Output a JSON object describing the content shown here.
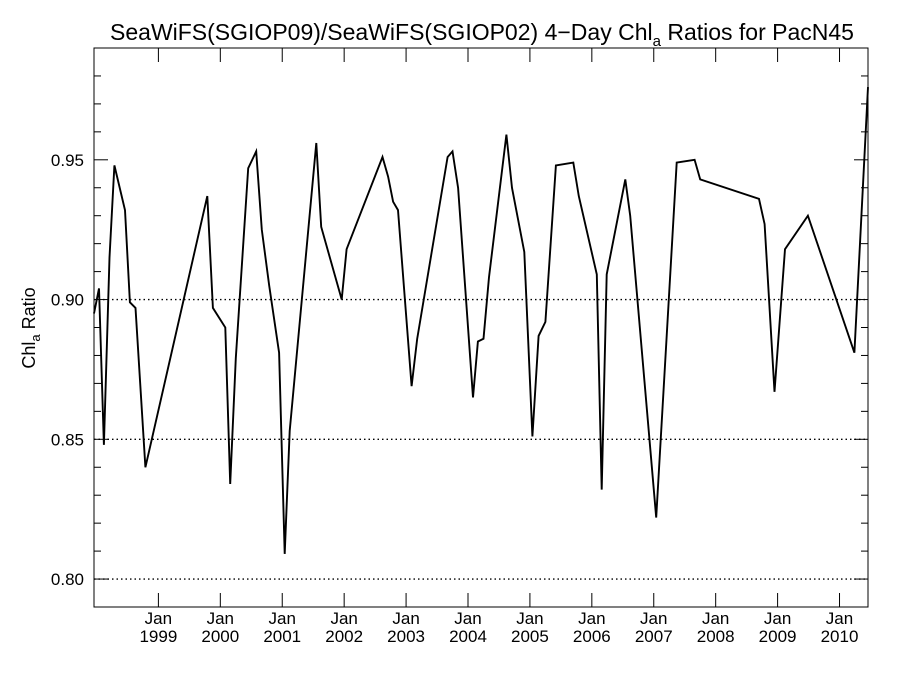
{
  "chart_data": {
    "type": "line",
    "title_main": "SeaWiFS(SGIOP09)/SeaWiFS(SGIOP02) 4−Day Chl",
    "title_sub": "a",
    "title_tail": " Ratios for PacN45",
    "ylabel_main": "Chl",
    "ylabel_sub": "a",
    "ylabel_tail": " Ratio",
    "ylim": [
      0.79,
      0.99
    ],
    "xlim": [
      1997.96,
      2010.46
    ],
    "y_ticks": [
      {
        "value": 0.8,
        "label": "0.80"
      },
      {
        "value": 0.85,
        "label": "0.85"
      },
      {
        "value": 0.9,
        "label": "0.90"
      },
      {
        "value": 0.95,
        "label": "0.95"
      }
    ],
    "y_gridlines": [
      0.8,
      0.85,
      0.9
    ],
    "x_ticks": [
      {
        "value": 1999,
        "month": "Jan",
        "year": "1999"
      },
      {
        "value": 2000,
        "month": "Jan",
        "year": "2000"
      },
      {
        "value": 2001,
        "month": "Jan",
        "year": "2001"
      },
      {
        "value": 2002,
        "month": "Jan",
        "year": "2002"
      },
      {
        "value": 2003,
        "month": "Jan",
        "year": "2003"
      },
      {
        "value": 2004,
        "month": "Jan",
        "year": "2004"
      },
      {
        "value": 2005,
        "month": "Jan",
        "year": "2005"
      },
      {
        "value": 2006,
        "month": "Jan",
        "year": "2006"
      },
      {
        "value": 2007,
        "month": "Jan",
        "year": "2007"
      },
      {
        "value": 2008,
        "month": "Jan",
        "year": "2008"
      },
      {
        "value": 2009,
        "month": "Jan",
        "year": "2009"
      },
      {
        "value": 2010,
        "month": "Jan",
        "year": "2010"
      }
    ],
    "series": [
      {
        "color": "#000000",
        "x": [
          1997.96,
          1998.04,
          1998.12,
          1998.21,
          1998.29,
          1998.46,
          1998.54,
          1998.63,
          1998.79,
          1999.79,
          1999.88,
          2000.08,
          2000.16,
          2000.25,
          2000.45,
          2000.58,
          2000.67,
          2000.79,
          2000.95,
          2001.04,
          2001.12,
          2001.55,
          2001.63,
          2001.96,
          2002.04,
          2002.62,
          2002.71,
          2002.79,
          2002.87,
          2003.09,
          2003.18,
          2003.67,
          2003.75,
          2003.84,
          2004.08,
          2004.16,
          2004.25,
          2004.34,
          2004.62,
          2004.71,
          2004.91,
          2005.04,
          2005.14,
          2005.25,
          2005.42,
          2005.7,
          2005.79,
          2006.08,
          2006.16,
          2006.24,
          2006.54,
          2006.62,
          2007.04,
          2007.37,
          2007.66,
          2007.75,
          2008.7,
          2008.79,
          2008.95,
          2009.12,
          2009.49,
          2010.24,
          2010.46
        ],
        "y": [
          0.895,
          0.904,
          0.848,
          0.915,
          0.948,
          0.932,
          0.899,
          0.897,
          0.84,
          0.937,
          0.897,
          0.89,
          0.834,
          0.879,
          0.947,
          0.953,
          0.925,
          0.905,
          0.881,
          0.809,
          0.853,
          0.956,
          0.926,
          0.9,
          0.918,
          0.951,
          0.944,
          0.935,
          0.932,
          0.869,
          0.886,
          0.951,
          0.953,
          0.94,
          0.865,
          0.885,
          0.886,
          0.908,
          0.959,
          0.94,
          0.917,
          0.851,
          0.887,
          0.892,
          0.948,
          0.949,
          0.937,
          0.909,
          0.832,
          0.909,
          0.943,
          0.93,
          0.822,
          0.949,
          0.95,
          0.943,
          0.936,
          0.927,
          0.867,
          0.918,
          0.93,
          0.881,
          0.976
        ]
      }
    ]
  }
}
